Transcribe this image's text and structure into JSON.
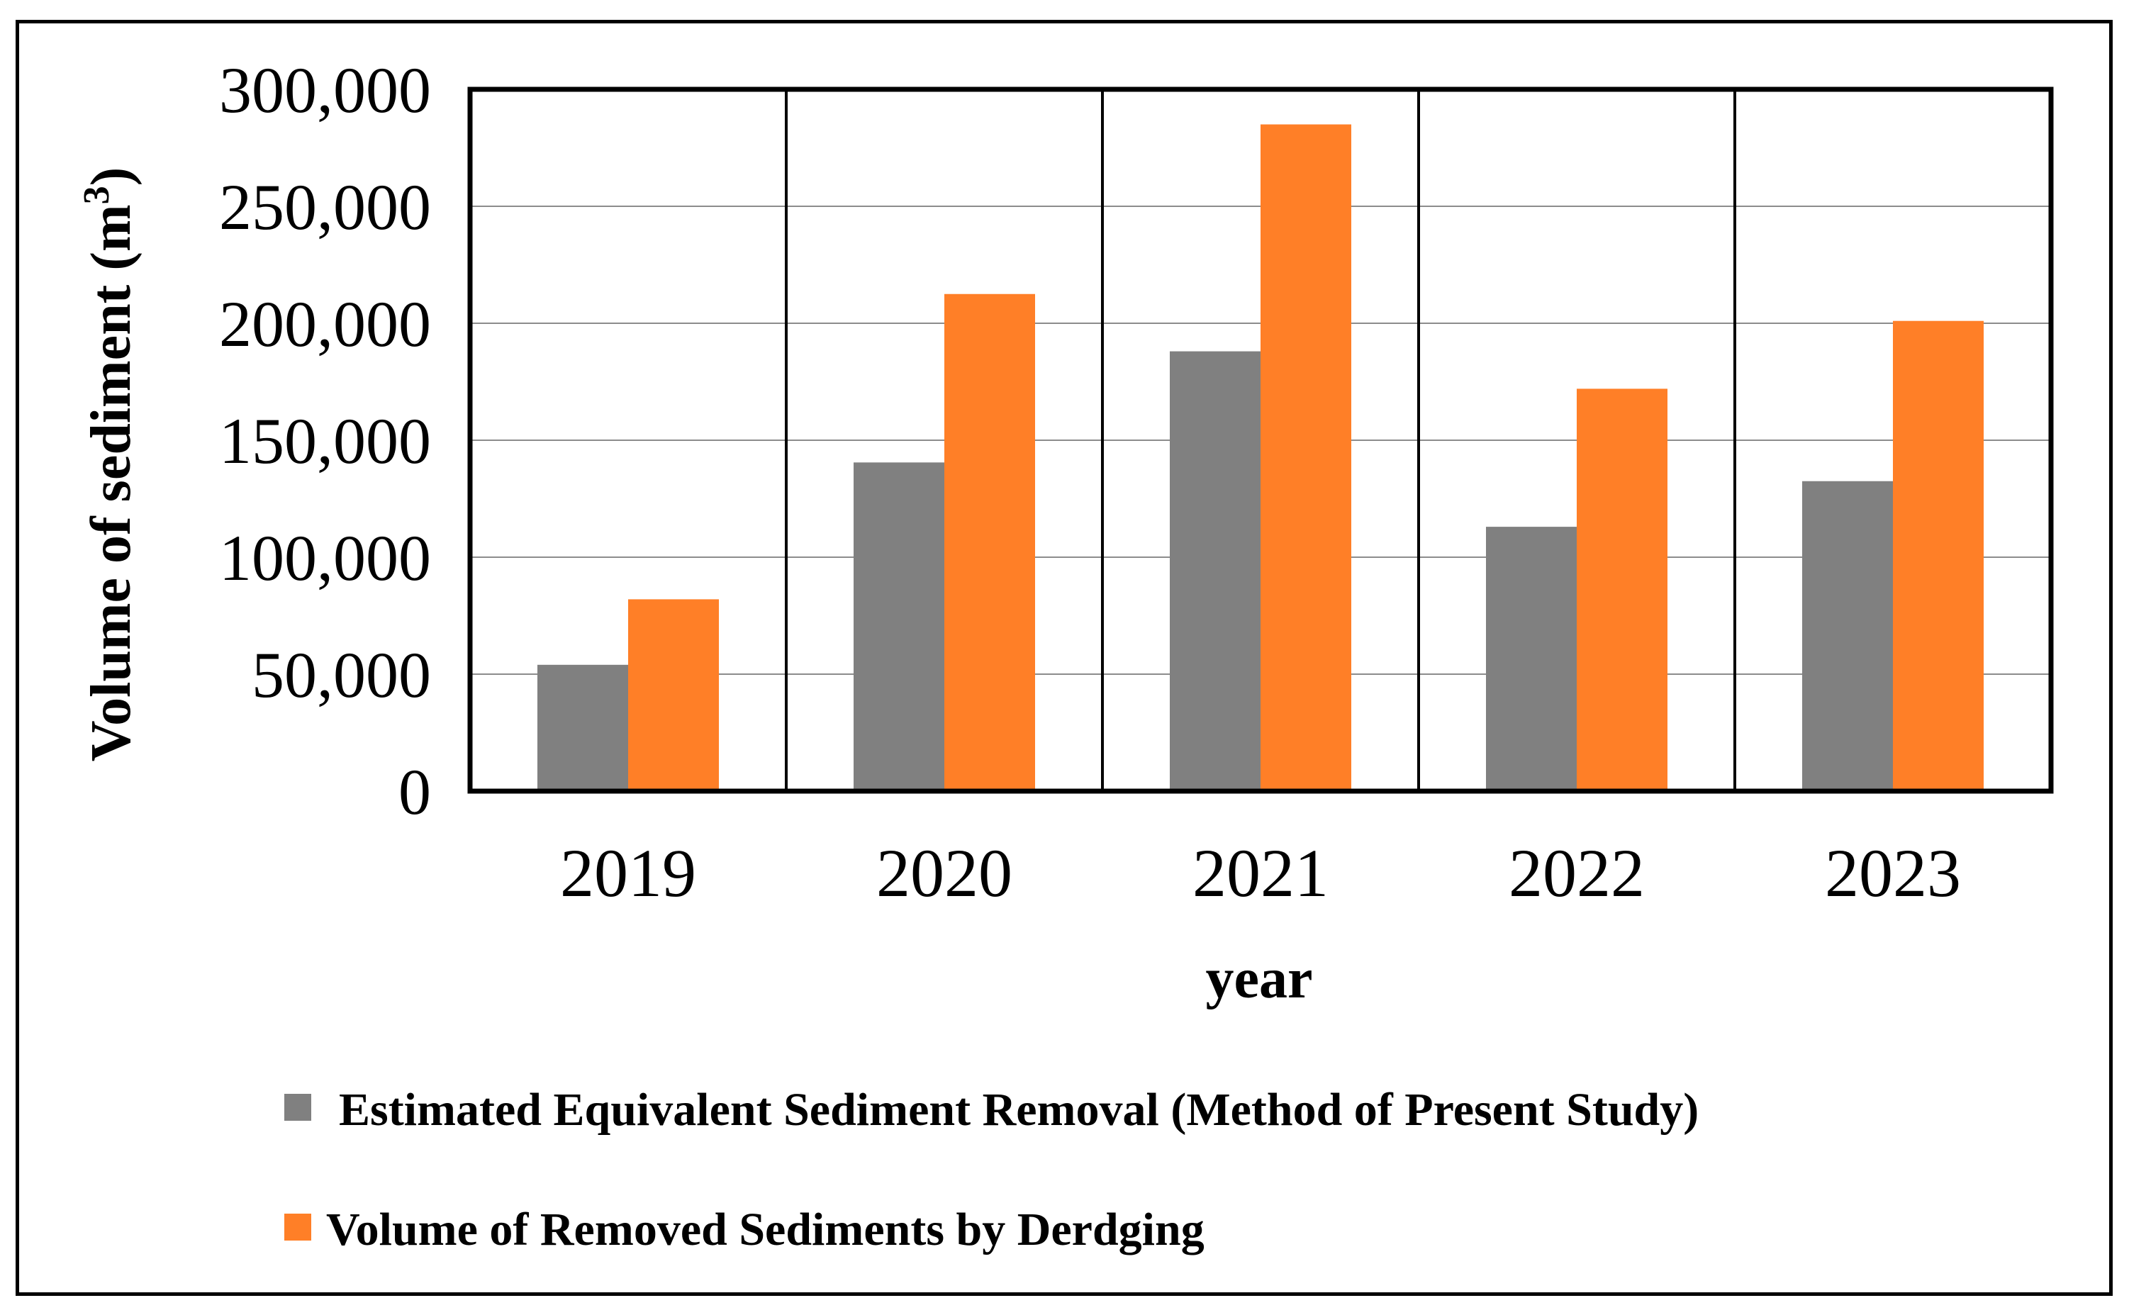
{
  "chart_data": {
    "type": "bar",
    "title": "",
    "xlabel": "year",
    "ylabel": "Volume of sediment (m",
    "ylabel_superscript": "3",
    "ylabel_close": ")",
    "categories": [
      "2019",
      "2020",
      "2021",
      "2022",
      "2023"
    ],
    "ylim": [
      0,
      300000
    ],
    "yticks": [
      0,
      50000,
      100000,
      150000,
      200000,
      250000,
      300000
    ],
    "ytick_labels": [
      "0",
      "50,000",
      "100,000",
      "150,000",
      "200,000",
      "250,000",
      "300,000"
    ],
    "grid": true,
    "legend_position": "bottom",
    "series": [
      {
        "name": "Estimated  Equivalent Sediment Removal (Method of Present Study)",
        "color": "#808080",
        "values": [
          54000,
          140500,
          188000,
          113000,
          132500
        ]
      },
      {
        "name": "Volume of Removed Sediments by Derdging",
        "color": "#FF7F27",
        "values": [
          82000,
          212500,
          285000,
          172000,
          201000
        ]
      }
    ]
  }
}
